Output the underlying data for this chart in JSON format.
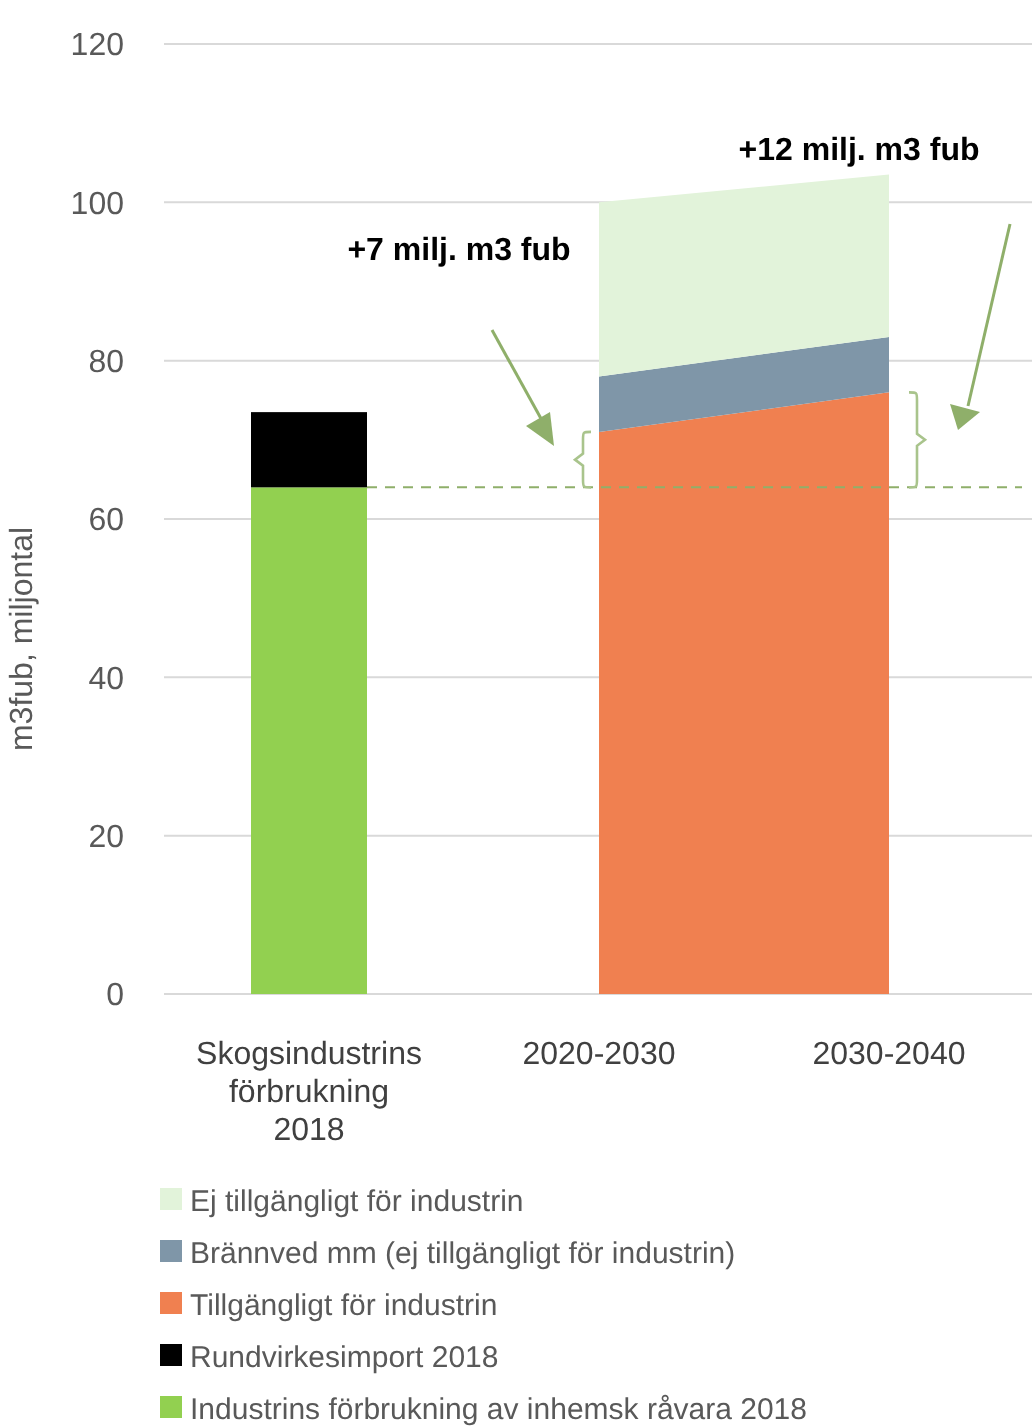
{
  "chart_data": {
    "type": "bar",
    "stacked": true,
    "ylabel": "m3fub, miljontal",
    "categories": [
      "Skogsindustrins förbrukning 2018",
      "2020-2030",
      "2030-2040"
    ],
    "series": [
      {
        "name": "Industrins förbrukning av inhemsk råvara 2018",
        "color": "#92d050",
        "values": [
          64,
          null,
          null
        ]
      },
      {
        "name": "Rundvirkesimport 2018",
        "color": "#000000",
        "values": [
          9.5,
          null,
          null
        ]
      },
      {
        "name": "Tillgängligt för industrin",
        "type": "area",
        "color": "#f08050",
        "values": [
          null,
          71,
          76
        ]
      },
      {
        "name": "Brännved mm (ej tillgängligt för industrin)",
        "type": "area",
        "color": "#7f96a8",
        "values": [
          null,
          7,
          7
        ]
      },
      {
        "name": "Ej tillgängligt för industrin",
        "type": "area",
        "color": "#e2f3da",
        "values": [
          null,
          22,
          20.5
        ]
      }
    ],
    "ylim": [
      0,
      120
    ],
    "yticks": [
      0,
      20,
      40,
      60,
      80,
      100,
      120
    ],
    "grid": "y",
    "legend": "bottom",
    "ref_lines": [
      {
        "axis": "y",
        "value": 64,
        "color": "#8faf6a",
        "line_style": "dashed"
      }
    ],
    "annotations": [
      "+7 milj. m3 fub",
      "+12 milj. m3 fub"
    ]
  }
}
